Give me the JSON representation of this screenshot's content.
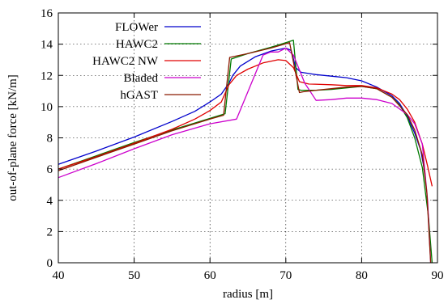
{
  "chart_data": {
    "type": "line",
    "title": "",
    "xlabel": "radius [m]",
    "ylabel": "out-of-plane force [kN/m]",
    "xlim": [
      40,
      90
    ],
    "ylim": [
      0,
      16
    ],
    "xticks": [
      40,
      50,
      60,
      70,
      80,
      90
    ],
    "yticks": [
      0,
      2,
      4,
      6,
      8,
      10,
      12,
      14,
      16
    ],
    "grid": true,
    "legend_position": "top-left",
    "series": [
      {
        "name": "FLOWer",
        "color": "#0000cc",
        "x": [
          40,
          45,
          50,
          55,
          58,
          60,
          61.5,
          62.5,
          63,
          64,
          66,
          68,
          70,
          70.7,
          71.3,
          72,
          74,
          76,
          78,
          80,
          82,
          84,
          85,
          86,
          87,
          87.8,
          88.4
        ],
        "y": [
          6.3,
          7.15,
          8.05,
          9.05,
          9.7,
          10.3,
          10.8,
          11.5,
          12.0,
          12.6,
          13.2,
          13.55,
          13.75,
          13.6,
          12.5,
          12.2,
          12.05,
          11.95,
          11.85,
          11.65,
          11.25,
          10.7,
          10.2,
          9.4,
          8.3,
          7.2,
          5.6
        ]
      },
      {
        "name": "HAWC2",
        "color": "#007a00",
        "x": [
          40,
          45,
          50,
          55,
          60,
          62,
          62.8,
          65,
          68,
          70,
          71,
          71.6,
          72,
          74,
          76,
          78,
          80,
          82,
          84,
          85,
          86,
          87,
          88,
          88.8,
          89.3
        ],
        "y": [
          6.0,
          6.85,
          7.7,
          8.5,
          9.25,
          9.55,
          13.05,
          13.4,
          13.8,
          14.1,
          14.25,
          11.1,
          11.05,
          11.05,
          11.1,
          11.2,
          11.3,
          11.15,
          10.6,
          10.1,
          9.3,
          8.0,
          6.1,
          3.0,
          0.0
        ]
      },
      {
        "name": "HAWC2 NW",
        "color": "#e00000",
        "x": [
          40,
          45,
          50,
          55,
          58,
          60,
          61.5,
          62.5,
          63.5,
          65,
          67,
          69,
          70,
          71,
          71.8,
          73,
          76,
          78,
          80,
          82,
          84,
          85,
          86,
          87,
          88,
          88.7,
          89.3
        ],
        "y": [
          6.0,
          6.8,
          7.65,
          8.55,
          9.2,
          9.75,
          10.3,
          11.4,
          12.0,
          12.4,
          12.8,
          13.0,
          12.95,
          12.5,
          11.6,
          11.45,
          11.4,
          11.35,
          11.35,
          11.2,
          10.8,
          10.45,
          9.85,
          9.0,
          7.6,
          6.2,
          4.9
        ]
      },
      {
        "name": "Bladed",
        "color": "#cc00cc",
        "x": [
          40,
          45,
          50,
          55,
          60,
          63.5,
          67,
          68,
          69,
          70,
          71,
          72.5,
          74,
          76,
          78,
          80,
          82,
          84,
          86,
          87,
          88,
          88.7,
          89.1
        ],
        "y": [
          5.45,
          6.35,
          7.3,
          8.2,
          8.9,
          9.2,
          13.3,
          13.5,
          13.5,
          13.75,
          13.3,
          11.5,
          10.4,
          10.45,
          10.55,
          10.55,
          10.45,
          10.2,
          9.5,
          8.9,
          7.6,
          4.0,
          0.0
        ]
      },
      {
        "name": "hGAST",
        "color": "#8b1a00",
        "x": [
          40,
          45,
          50,
          55,
          60,
          61.8,
          62.6,
          65,
          68,
          70.5,
          71.8,
          72.3,
          74,
          76,
          78,
          80,
          82,
          84,
          86,
          87,
          88,
          88.6,
          89.1
        ],
        "y": [
          5.9,
          6.75,
          7.6,
          8.45,
          9.2,
          9.45,
          13.15,
          13.4,
          13.75,
          14.1,
          10.9,
          10.95,
          11.05,
          11.15,
          11.25,
          11.3,
          11.15,
          10.6,
          9.5,
          8.5,
          6.9,
          4.5,
          0.0
        ]
      }
    ]
  }
}
